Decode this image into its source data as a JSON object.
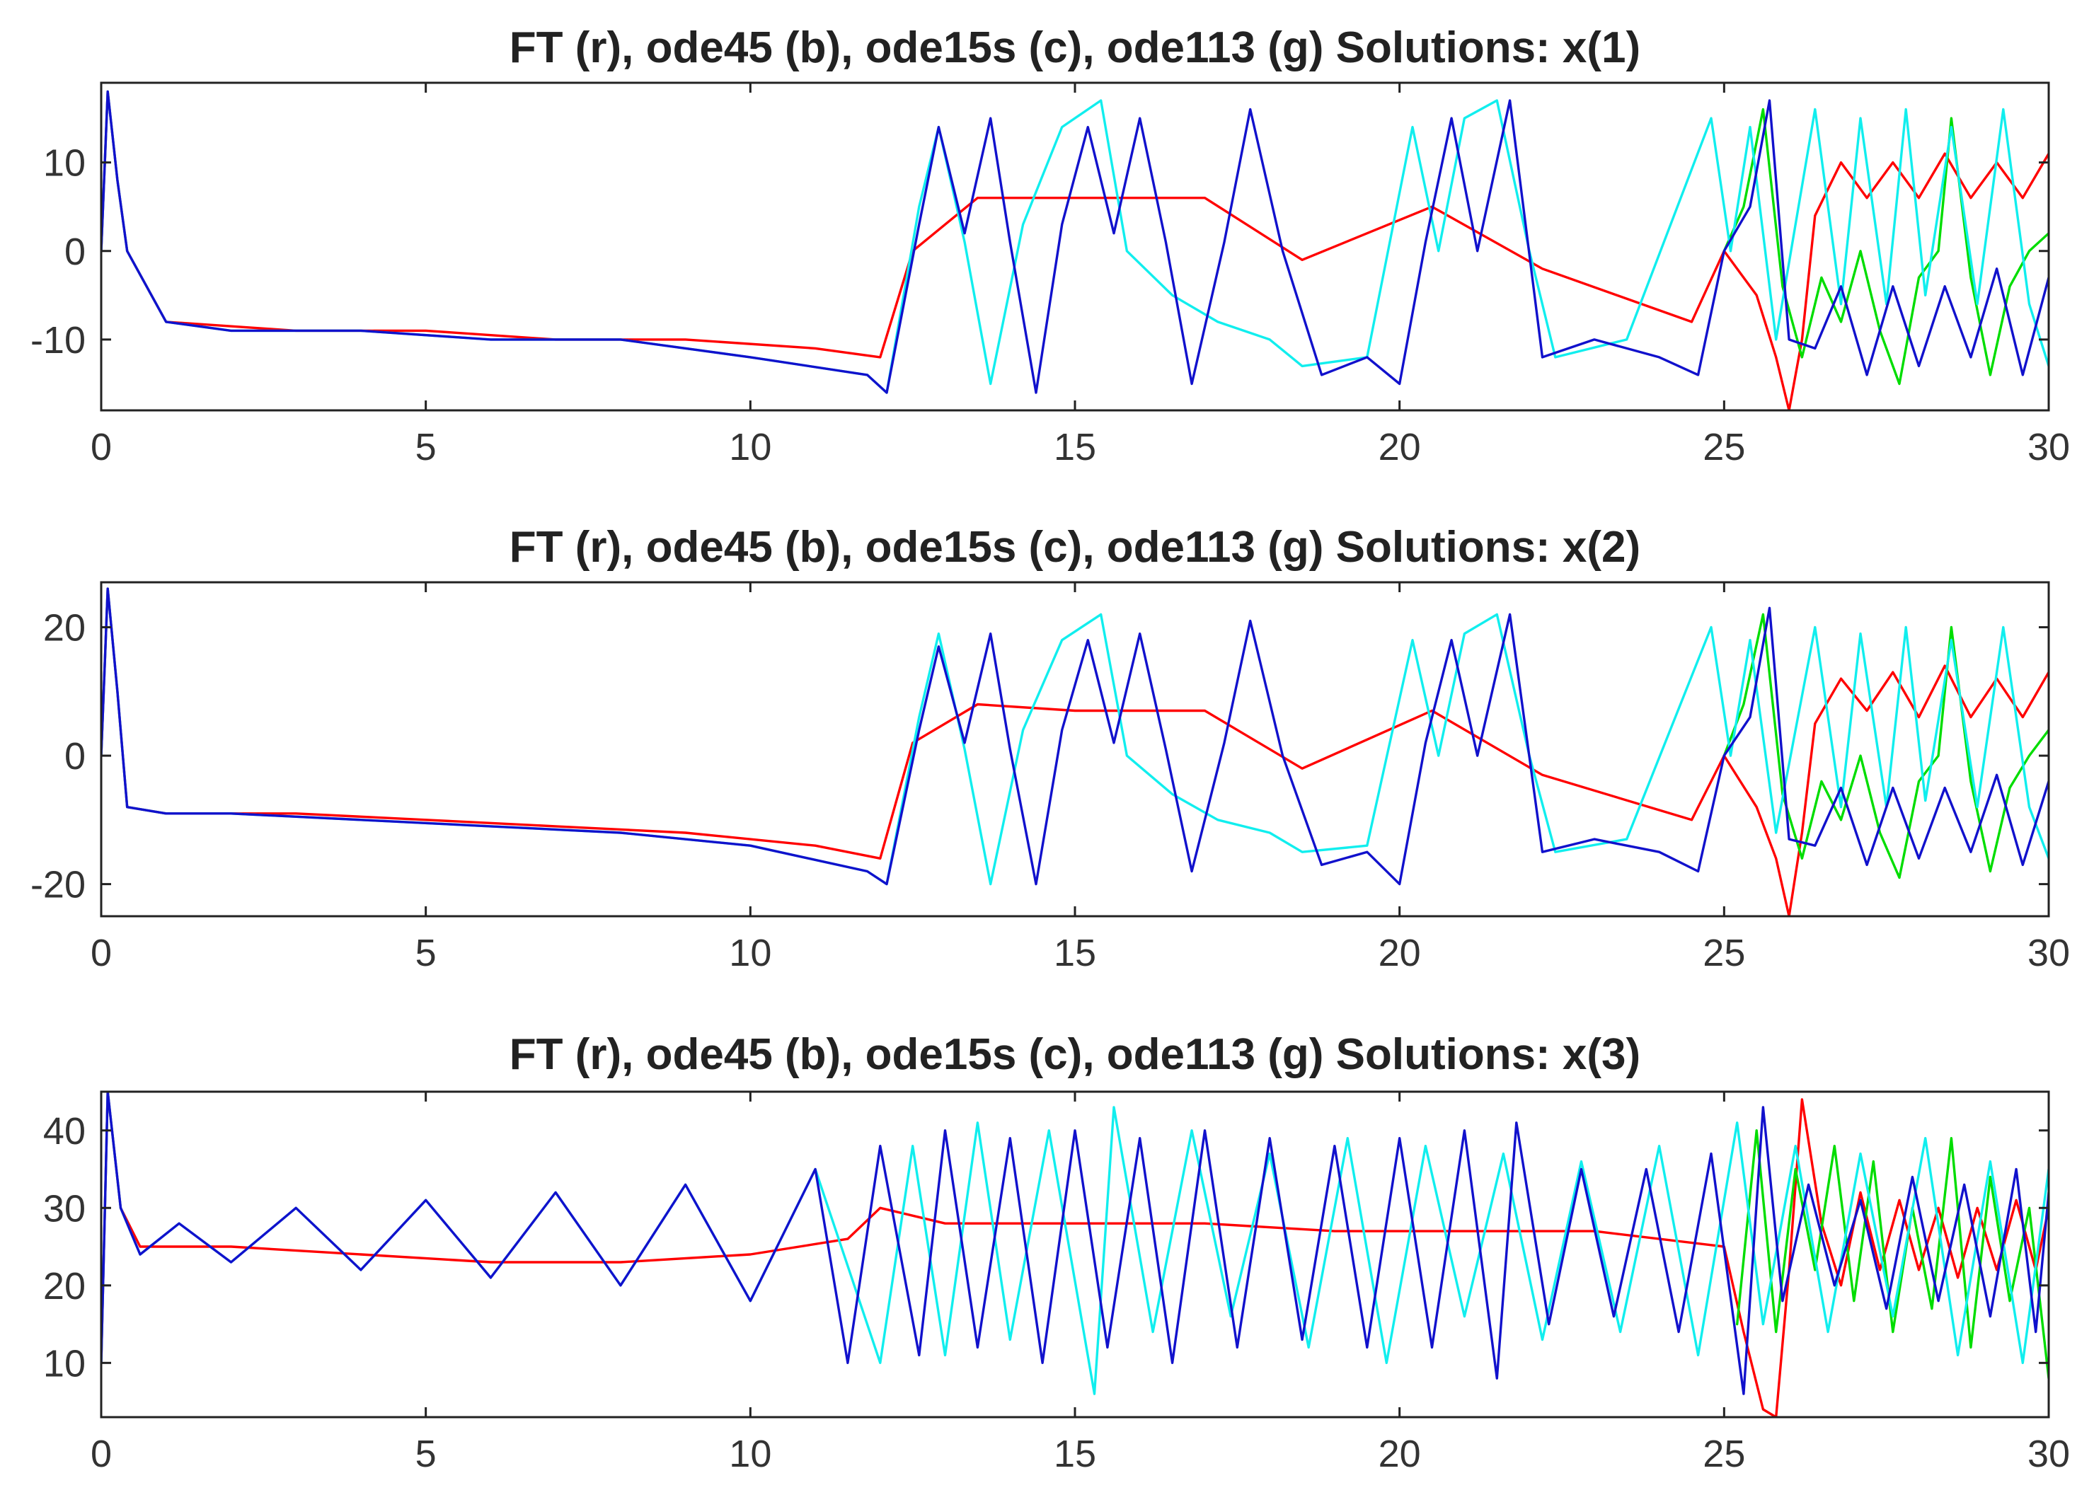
{
  "figure": {
    "background": "#ffffff"
  },
  "chart_data": [
    {
      "type": "line",
      "title": "FT (r), ode45 (b), ode15s (c), ode113 (g) Solutions: x(1)",
      "xlabel": "",
      "ylabel": "",
      "xlim": [
        0,
        30
      ],
      "ylim": [
        -18,
        19
      ],
      "xticks": [
        0,
        5,
        10,
        15,
        20,
        25,
        30
      ],
      "yticks": [
        -10,
        0,
        10
      ],
      "grid": false,
      "series": [
        {
          "color": "#ff0000",
          "x": [
            0,
            0.1,
            0.25,
            0.4,
            1.0,
            3.0,
            5.0,
            7.0,
            9.0,
            11.0,
            12.0,
            12.5,
            13.5,
            15,
            17,
            18.5,
            20.5,
            22.2,
            24.5,
            25.0,
            25.5,
            25.8,
            26.0,
            26.2,
            26.4,
            26.8,
            27.2,
            27.6,
            28.0,
            28.4,
            28.8,
            29.2,
            29.6,
            30.0
          ],
          "y": [
            0,
            18,
            8,
            0,
            -8,
            -9,
            -9,
            -10,
            -10,
            -11,
            -12,
            0,
            6,
            6,
            6,
            -1,
            5,
            -2,
            -8,
            0,
            -5,
            -12,
            -18,
            -10,
            4,
            10,
            6,
            10,
            6,
            11,
            6,
            10,
            6,
            11
          ]
        },
        {
          "color": "#00dd00",
          "x": [
            25.0,
            25.3,
            25.6,
            25.9,
            26.2,
            26.5,
            26.8,
            27.1,
            27.4,
            27.7,
            28.0,
            28.3,
            28.5,
            28.8,
            29.1,
            29.4,
            29.7,
            30.0
          ],
          "y": [
            0,
            5,
            16,
            -4,
            -12,
            -3,
            -8,
            0,
            -9,
            -15,
            -3,
            0,
            15,
            -3,
            -14,
            -4,
            0,
            2
          ]
        },
        {
          "color": "#11eeee",
          "x": [
            0,
            0.1,
            0.25,
            0.4,
            1,
            2,
            4,
            6,
            8,
            10,
            11.8,
            12.1,
            12.6,
            12.9,
            13.3,
            13.7,
            14.2,
            14.8,
            15.4,
            15.8,
            16.5,
            17.2,
            18,
            18.5,
            19.5,
            20.2,
            20.6,
            21,
            21.5,
            22,
            22.4,
            23.5,
            24.8,
            25.1,
            25.4,
            25.8,
            26.1,
            26.4,
            26.8,
            27.1,
            27.5,
            27.8,
            28.1,
            28.5,
            28.9,
            29.3,
            29.7,
            30.0
          ],
          "y": [
            0,
            18,
            8,
            0,
            -8,
            -9,
            -9,
            -10,
            -10,
            -12,
            -14,
            -16,
            5,
            14,
            1,
            -15,
            3,
            14,
            17,
            0,
            -5,
            -8,
            -10,
            -13,
            -12,
            14,
            0,
            15,
            17,
            0,
            -12,
            -10,
            15,
            0,
            14,
            -10,
            3,
            16,
            -6,
            15,
            -6,
            16,
            -5,
            14,
            -6,
            16,
            -6,
            -13
          ]
        },
        {
          "color": "#1111cc",
          "x": [
            0,
            0.1,
            0.25,
            0.4,
            1,
            2,
            4,
            6,
            8,
            10,
            11.8,
            12.1,
            12.6,
            12.9,
            13.3,
            13.7,
            14.0,
            14.4,
            14.8,
            15.2,
            15.6,
            16.0,
            16.4,
            16.8,
            17.3,
            17.7,
            18.2,
            18.8,
            19.5,
            20.0,
            20.4,
            20.8,
            21.2,
            21.7,
            22.2,
            23.0,
            24.0,
            24.6,
            25.0,
            25.4,
            25.7,
            26.0,
            26.4,
            26.8,
            27.2,
            27.6,
            28.0,
            28.4,
            28.8,
            29.2,
            29.6,
            30.0
          ],
          "y": [
            0,
            18,
            8,
            0,
            -8,
            -9,
            -9,
            -10,
            -10,
            -12,
            -14,
            -16,
            3,
            14,
            2,
            15,
            1,
            -16,
            3,
            14,
            2,
            15,
            1,
            -15,
            1,
            16,
            0,
            -14,
            -12,
            -15,
            1,
            15,
            0,
            17,
            -12,
            -10,
            -12,
            -14,
            0,
            5,
            17,
            -10,
            -11,
            -4,
            -14,
            -4,
            -13,
            -4,
            -12,
            -2,
            -14,
            -3
          ]
        }
      ]
    },
    {
      "type": "line",
      "title": "FT (r), ode45 (b), ode15s (c), ode113 (g) Solutions: x(2)",
      "xlabel": "",
      "ylabel": "",
      "xlim": [
        0,
        30
      ],
      "ylim": [
        -25,
        27
      ],
      "xticks": [
        0,
        5,
        10,
        15,
        20,
        25,
        30
      ],
      "yticks": [
        -20,
        0,
        20
      ],
      "grid": false,
      "series": [
        {
          "color": "#ff0000",
          "x": [
            0,
            0.1,
            0.25,
            0.4,
            1.0,
            3.0,
            5.0,
            7.0,
            9.0,
            11.0,
            12.0,
            12.5,
            13.5,
            15,
            17,
            18.5,
            20.5,
            22.2,
            24.5,
            25.0,
            25.5,
            25.8,
            26.0,
            26.2,
            26.4,
            26.8,
            27.2,
            27.6,
            28.0,
            28.4,
            28.8,
            29.2,
            29.6,
            30.0
          ],
          "y": [
            0,
            26,
            10,
            -8,
            -9,
            -9,
            -10,
            -11,
            -12,
            -14,
            -16,
            2,
            8,
            7,
            7,
            -2,
            7,
            -3,
            -10,
            0,
            -8,
            -16,
            -25,
            -12,
            5,
            12,
            7,
            13,
            6,
            14,
            6,
            12,
            6,
            13
          ]
        },
        {
          "color": "#00dd00",
          "x": [
            25.0,
            25.3,
            25.6,
            25.9,
            26.2,
            26.5,
            26.8,
            27.1,
            27.4,
            27.7,
            28.0,
            28.3,
            28.5,
            28.8,
            29.1,
            29.4,
            29.7,
            30.0
          ],
          "y": [
            0,
            8,
            22,
            -6,
            -16,
            -4,
            -10,
            0,
            -12,
            -19,
            -4,
            0,
            20,
            -4,
            -18,
            -5,
            0,
            4
          ]
        },
        {
          "color": "#11eeee",
          "x": [
            0,
            0.1,
            0.25,
            0.4,
            1,
            2,
            4,
            6,
            8,
            10,
            11.8,
            12.1,
            12.6,
            12.9,
            13.3,
            13.7,
            14.2,
            14.8,
            15.4,
            15.8,
            16.5,
            17.2,
            18,
            18.5,
            19.5,
            20.2,
            20.6,
            21,
            21.5,
            22,
            22.4,
            23.5,
            24.8,
            25.1,
            25.4,
            25.8,
            26.1,
            26.4,
            26.8,
            27.1,
            27.5,
            27.8,
            28.1,
            28.5,
            28.9,
            29.3,
            29.7,
            30.0
          ],
          "y": [
            0,
            26,
            10,
            -8,
            -9,
            -9,
            -10,
            -11,
            -12,
            -14,
            -18,
            -20,
            6,
            19,
            1,
            -20,
            4,
            18,
            22,
            0,
            -6,
            -10,
            -12,
            -15,
            -14,
            18,
            0,
            19,
            22,
            0,
            -15,
            -13,
            20,
            0,
            18,
            -12,
            4,
            20,
            -8,
            19,
            -8,
            20,
            -7,
            18,
            -8,
            20,
            -8,
            -16
          ]
        },
        {
          "color": "#1111cc",
          "x": [
            0,
            0.1,
            0.25,
            0.4,
            1,
            2,
            4,
            6,
            8,
            10,
            11.8,
            12.1,
            12.6,
            12.9,
            13.3,
            13.7,
            14.0,
            14.4,
            14.8,
            15.2,
            15.6,
            16.0,
            16.4,
            16.8,
            17.3,
            17.7,
            18.2,
            18.8,
            19.5,
            20.0,
            20.4,
            20.8,
            21.2,
            21.7,
            22.2,
            23.0,
            24.0,
            24.6,
            25.0,
            25.4,
            25.7,
            26.0,
            26.4,
            26.8,
            27.2,
            27.6,
            28.0,
            28.4,
            28.8,
            29.2,
            29.6,
            30.0
          ],
          "y": [
            0,
            26,
            10,
            -8,
            -9,
            -9,
            -10,
            -11,
            -12,
            -14,
            -18,
            -20,
            4,
            17,
            2,
            19,
            1,
            -20,
            4,
            18,
            2,
            19,
            1,
            -18,
            2,
            21,
            0,
            -17,
            -15,
            -20,
            2,
            18,
            0,
            22,
            -15,
            -13,
            -15,
            -18,
            0,
            6,
            23,
            -13,
            -14,
            -5,
            -17,
            -5,
            -16,
            -5,
            -15,
            -3,
            -17,
            -4
          ]
        }
      ]
    },
    {
      "type": "line",
      "title": "FT (r), ode45 (b), ode15s (c), ode113 (g) Solutions: x(3)",
      "xlabel": "",
      "ylabel": "",
      "xlim": [
        0,
        30
      ],
      "ylim": [
        3,
        45
      ],
      "xticks": [
        0,
        5,
        10,
        15,
        20,
        25,
        30
      ],
      "yticks": [
        10,
        20,
        30,
        40
      ],
      "grid": false,
      "series": [
        {
          "color": "#ff0000",
          "x": [
            0,
            0.1,
            0.3,
            0.6,
            2,
            4,
            6,
            8,
            10,
            11.5,
            12,
            13,
            15,
            17,
            19,
            21,
            23,
            25,
            25.3,
            25.6,
            25.8,
            26.0,
            26.2,
            26.5,
            26.8,
            27.1,
            27.4,
            27.7,
            28.0,
            28.3,
            28.6,
            28.9,
            29.2,
            29.5,
            29.8,
            30.0
          ],
          "y": [
            10,
            45,
            30,
            25,
            25,
            24,
            23,
            23,
            24,
            26,
            30,
            28,
            28,
            28,
            27,
            27,
            27,
            25,
            14,
            4,
            3,
            22,
            44,
            28,
            20,
            32,
            22,
            31,
            22,
            30,
            21,
            30,
            22,
            31,
            22,
            30
          ]
        },
        {
          "color": "#00dd00",
          "x": [
            25.2,
            25.5,
            25.8,
            26.1,
            26.4,
            26.7,
            27.0,
            27.3,
            27.6,
            27.9,
            28.2,
            28.5,
            28.8,
            29.1,
            29.4,
            29.7,
            30.0
          ],
          "y": [
            15,
            40,
            14,
            35,
            22,
            38,
            18,
            36,
            14,
            30,
            17,
            39,
            12,
            34,
            18,
            30,
            8
          ]
        },
        {
          "color": "#11eeee",
          "x": [
            0,
            0.1,
            0.3,
            0.6,
            1.2,
            2,
            3,
            4,
            5,
            6,
            7,
            8,
            9,
            10,
            11,
            12.0,
            12.5,
            13.0,
            13.5,
            14.0,
            14.6,
            15.3,
            15.6,
            16.2,
            16.8,
            17.4,
            18.0,
            18.6,
            19.2,
            19.8,
            20.4,
            21.0,
            21.6,
            22.2,
            22.8,
            23.4,
            24.0,
            24.6,
            25.2,
            25.6,
            26.1,
            26.6,
            27.1,
            27.6,
            28.1,
            28.6,
            29.1,
            29.6,
            30.0
          ],
          "y": [
            10,
            45,
            30,
            24,
            28,
            23,
            30,
            22,
            31,
            21,
            32,
            20,
            33,
            18,
            35,
            10,
            38,
            11,
            41,
            13,
            40,
            6,
            43,
            14,
            40,
            16,
            37,
            12,
            39,
            10,
            38,
            16,
            37,
            13,
            36,
            14,
            38,
            11,
            41,
            15,
            38,
            14,
            37,
            16,
            39,
            11,
            36,
            10,
            35
          ]
        },
        {
          "color": "#1111cc",
          "x": [
            0,
            0.1,
            0.3,
            0.6,
            1.2,
            2,
            3,
            4,
            5,
            6,
            7,
            8,
            9,
            10,
            11,
            11.5,
            12.0,
            12.6,
            13.0,
            13.5,
            14.0,
            14.5,
            15.0,
            15.5,
            16.0,
            16.5,
            17.0,
            17.5,
            18.0,
            18.5,
            19.0,
            19.5,
            20.0,
            20.5,
            21.0,
            21.5,
            21.8,
            22.3,
            22.8,
            23.3,
            23.8,
            24.3,
            24.8,
            25.3,
            25.6,
            25.9,
            26.3,
            26.7,
            27.1,
            27.5,
            27.9,
            28.3,
            28.7,
            29.1,
            29.5,
            29.8,
            30.0
          ],
          "y": [
            10,
            45,
            30,
            24,
            28,
            23,
            30,
            22,
            31,
            21,
            32,
            20,
            33,
            18,
            35,
            10,
            38,
            11,
            40,
            12,
            39,
            10,
            40,
            12,
            39,
            10,
            40,
            12,
            39,
            13,
            38,
            12,
            39,
            12,
            40,
            8,
            41,
            15,
            35,
            16,
            35,
            14,
            37,
            6,
            43,
            18,
            33,
            20,
            31,
            17,
            34,
            18,
            33,
            16,
            35,
            14,
            32
          ]
        }
      ]
    }
  ]
}
